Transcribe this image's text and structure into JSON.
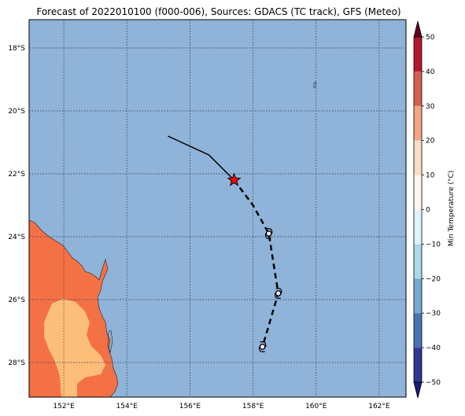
{
  "title": "Forecast of 2022010100 (f000-006), Sources: GDACS (TC track), GFS (Meteo)",
  "map": {
    "lat_ticks": [
      "18°S",
      "20°S",
      "22°S",
      "24°S",
      "26°S",
      "28°S"
    ],
    "lon_ticks": [
      "152°E",
      "154°E",
      "156°E",
      "158°E",
      "160°E",
      "162°E"
    ],
    "lon_range": [
      150.9,
      162.85
    ],
    "lat_range": [
      -29.1,
      -17.1
    ],
    "ocean_color": "#8fb3d9"
  },
  "track": {
    "past_observed": [
      [
        155.3,
        -20.8
      ],
      [
        156.6,
        -21.4
      ],
      [
        157.4,
        -22.2
      ]
    ],
    "current_position": [
      157.4,
      -22.2
    ],
    "current_marker": "star-icon",
    "current_color": "#ff0000",
    "forecast": [
      [
        157.4,
        -22.2
      ],
      [
        158.0,
        -23.0
      ],
      [
        158.5,
        -23.9
      ],
      [
        158.8,
        -25.8
      ],
      [
        158.3,
        -27.5
      ]
    ],
    "forecast_points": [
      [
        158.5,
        -23.9
      ],
      [
        158.8,
        -25.8
      ],
      [
        158.3,
        -27.5
      ]
    ]
  },
  "colorbar": {
    "label": "Min Temperature (°C)",
    "ticks": [
      "50",
      "40",
      "30",
      "20",
      "10",
      "0",
      "−10",
      "−20",
      "−30",
      "−40",
      "−50"
    ],
    "colors_top_to_bottom": [
      "#67001f",
      "#b2182b",
      "#d6604d",
      "#f4a582",
      "#fddbc7",
      "#fff7ec",
      "#e0f3f8",
      "#abd9e9",
      "#74add1",
      "#4575b4",
      "#313695",
      "#1a1a80"
    ],
    "land_color_warm": "#f47146",
    "land_color_mild": "#fdbe79"
  }
}
